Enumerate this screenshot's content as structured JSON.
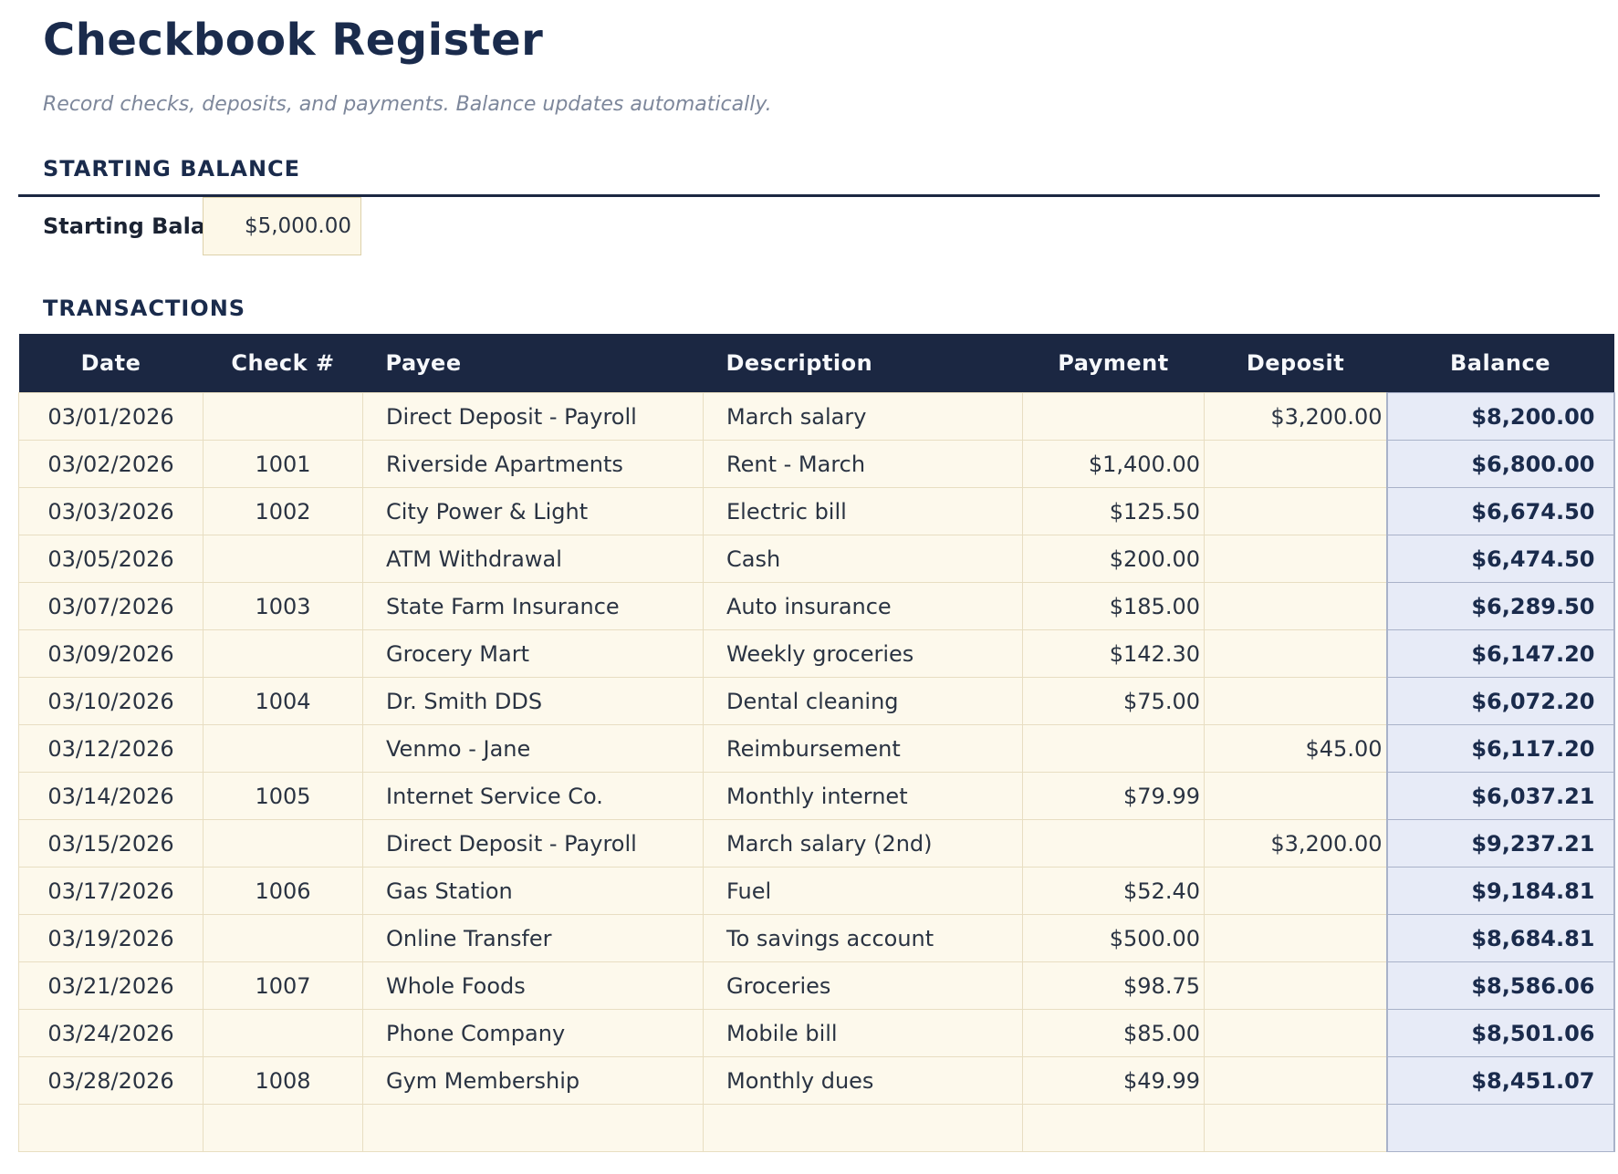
{
  "page": {
    "title": "Checkbook Register",
    "subtitle": "Record checks, deposits, and payments. Balance updates automatically."
  },
  "starting_balance": {
    "section_title": "STARTING BALANCE",
    "label": "Starting Balance",
    "value": "$5,000.00"
  },
  "transactions": {
    "section_title": "TRANSACTIONS",
    "columns": [
      "Date",
      "Check #",
      "Payee",
      "Description",
      "Payment",
      "Deposit",
      "Balance"
    ],
    "rows": [
      {
        "date": "03/01/2026",
        "check": "",
        "payee": "Direct Deposit - Payroll",
        "description": "March salary",
        "payment": "",
        "deposit": "$3,200.00",
        "balance": "$8,200.00"
      },
      {
        "date": "03/02/2026",
        "check": "1001",
        "payee": "Riverside Apartments",
        "description": "Rent - March",
        "payment": "$1,400.00",
        "deposit": "",
        "balance": "$6,800.00"
      },
      {
        "date": "03/03/2026",
        "check": "1002",
        "payee": "City Power & Light",
        "description": "Electric bill",
        "payment": "$125.50",
        "deposit": "",
        "balance": "$6,674.50"
      },
      {
        "date": "03/05/2026",
        "check": "",
        "payee": "ATM Withdrawal",
        "description": "Cash",
        "payment": "$200.00",
        "deposit": "",
        "balance": "$6,474.50"
      },
      {
        "date": "03/07/2026",
        "check": "1003",
        "payee": "State Farm Insurance",
        "description": "Auto insurance",
        "payment": "$185.00",
        "deposit": "",
        "balance": "$6,289.50"
      },
      {
        "date": "03/09/2026",
        "check": "",
        "payee": "Grocery Mart",
        "description": "Weekly groceries",
        "payment": "$142.30",
        "deposit": "",
        "balance": "$6,147.20"
      },
      {
        "date": "03/10/2026",
        "check": "1004",
        "payee": "Dr. Smith DDS",
        "description": "Dental cleaning",
        "payment": "$75.00",
        "deposit": "",
        "balance": "$6,072.20"
      },
      {
        "date": "03/12/2026",
        "check": "",
        "payee": "Venmo - Jane",
        "description": "Reimbursement",
        "payment": "",
        "deposit": "$45.00",
        "balance": "$6,117.20"
      },
      {
        "date": "03/14/2026",
        "check": "1005",
        "payee": "Internet Service Co.",
        "description": "Monthly internet",
        "payment": "$79.99",
        "deposit": "",
        "balance": "$6,037.21"
      },
      {
        "date": "03/15/2026",
        "check": "",
        "payee": "Direct Deposit - Payroll",
        "description": "March salary (2nd)",
        "payment": "",
        "deposit": "$3,200.00",
        "balance": "$9,237.21"
      },
      {
        "date": "03/17/2026",
        "check": "1006",
        "payee": "Gas Station",
        "description": "Fuel",
        "payment": "$52.40",
        "deposit": "",
        "balance": "$9,184.81"
      },
      {
        "date": "03/19/2026",
        "check": "",
        "payee": "Online Transfer",
        "description": "To savings account",
        "payment": "$500.00",
        "deposit": "",
        "balance": "$8,684.81"
      },
      {
        "date": "03/21/2026",
        "check": "1007",
        "payee": "Whole Foods",
        "description": "Groceries",
        "payment": "$98.75",
        "deposit": "",
        "balance": "$8,586.06"
      },
      {
        "date": "03/24/2026",
        "check": "",
        "payee": "Phone Company",
        "description": "Mobile bill",
        "payment": "$85.00",
        "deposit": "",
        "balance": "$8,501.06"
      },
      {
        "date": "03/28/2026",
        "check": "1008",
        "payee": "Gym Membership",
        "description": "Monthly dues",
        "payment": "$49.99",
        "deposit": "",
        "balance": "$8,451.07"
      },
      {
        "date": "",
        "check": "",
        "payee": "",
        "description": "",
        "payment": "",
        "deposit": "",
        "balance": ""
      }
    ]
  },
  "colors": {
    "navy_header": "#1b2742",
    "title_text": "#1a2b4c",
    "row_cream": "#fdf9ec",
    "cell_border_tan": "#e8dec2",
    "balance_fill": "#e7ebf7",
    "balance_border": "#a9b2c9",
    "input_fill": "#fdf8e8",
    "subtitle_gray": "#7d879b"
  }
}
